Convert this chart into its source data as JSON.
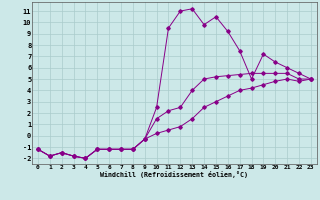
{
  "xlabel": "Windchill (Refroidissement éolien,°C)",
  "background_color": "#cce8e8",
  "grid_color": "#aacccc",
  "line_color": "#880088",
  "xlim": [
    -0.5,
    23.5
  ],
  "ylim": [
    -2.5,
    11.8
  ],
  "xticks": [
    0,
    1,
    2,
    3,
    4,
    5,
    6,
    7,
    8,
    9,
    10,
    11,
    12,
    13,
    14,
    15,
    16,
    17,
    18,
    19,
    20,
    21,
    22,
    23
  ],
  "yticks": [
    -2,
    -1,
    0,
    1,
    2,
    3,
    4,
    5,
    6,
    7,
    8,
    9,
    10,
    11
  ],
  "series1_x": [
    0,
    1,
    2,
    3,
    4,
    5,
    6,
    7,
    8,
    9,
    10,
    11,
    12,
    13,
    14,
    15,
    16,
    17,
    18,
    19,
    20,
    21,
    22,
    23
  ],
  "series1_y": [
    -1.2,
    -1.8,
    -1.5,
    -1.8,
    -2.0,
    -1.2,
    -1.2,
    -1.2,
    -1.2,
    -0.3,
    2.5,
    9.5,
    11.0,
    11.2,
    9.8,
    10.5,
    9.2,
    7.5,
    5.0,
    7.2,
    6.5,
    6.0,
    5.5,
    5.0
  ],
  "series2_x": [
    0,
    1,
    2,
    3,
    4,
    5,
    6,
    7,
    8,
    9,
    10,
    11,
    12,
    13,
    14,
    15,
    16,
    17,
    18,
    19,
    20,
    21,
    22,
    23
  ],
  "series2_y": [
    -1.2,
    -1.8,
    -1.5,
    -1.8,
    -2.0,
    -1.2,
    -1.2,
    -1.2,
    -1.2,
    -0.3,
    1.5,
    2.2,
    2.5,
    4.0,
    5.0,
    5.2,
    5.3,
    5.4,
    5.5,
    5.5,
    5.5,
    5.5,
    5.0,
    5.0
  ],
  "series3_x": [
    0,
    1,
    2,
    3,
    4,
    5,
    6,
    7,
    8,
    9,
    10,
    11,
    12,
    13,
    14,
    15,
    16,
    17,
    18,
    19,
    20,
    21,
    22,
    23
  ],
  "series3_y": [
    -1.2,
    -1.8,
    -1.5,
    -1.8,
    -2.0,
    -1.2,
    -1.2,
    -1.2,
    -1.2,
    -0.3,
    0.2,
    0.5,
    0.8,
    1.5,
    2.5,
    3.0,
    3.5,
    4.0,
    4.2,
    4.5,
    4.8,
    5.0,
    4.8,
    5.0
  ]
}
